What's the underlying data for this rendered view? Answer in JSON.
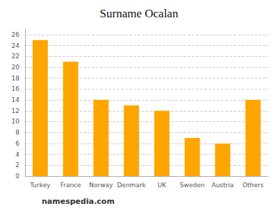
{
  "chart_data": {
    "type": "bar",
    "title": "Surname Ocalan",
    "categories": [
      "Turkey",
      "France",
      "Norway",
      "Denmark",
      "UK",
      "Sweden",
      "Austria",
      "Others"
    ],
    "values": [
      25,
      21,
      14,
      13,
      12,
      7,
      6,
      14
    ],
    "color": "#FFA500",
    "ylim": [
      0,
      27
    ],
    "yticks": [
      0,
      2,
      4,
      6,
      8,
      10,
      12,
      14,
      16,
      18,
      20,
      22,
      24,
      26
    ],
    "grid": true,
    "annotations": [
      "namespedia.com"
    ]
  }
}
